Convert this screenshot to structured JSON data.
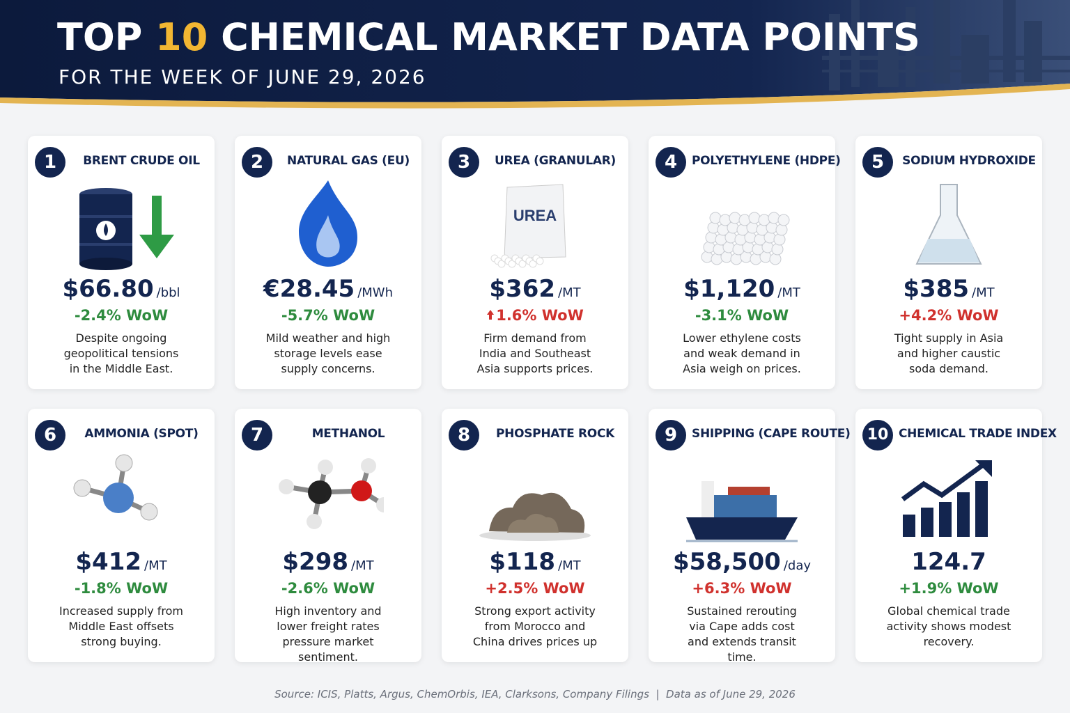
{
  "header": {
    "title_parts": [
      "TOP",
      "10",
      "CHEMICAL MARKET DATA POINTS"
    ],
    "subtitle": "FOR THE WEEK OF JUNE 29, 2026"
  },
  "cards": [
    {
      "number": "1",
      "name": "BRENT CRUDE OIL",
      "price": "$66.80",
      "unit": "/bbl",
      "change": "-2.4% WoW",
      "color": "#2e8b3e",
      "description": "Despite ongoing geopolitical tensions in the Middle East."
    },
    {
      "number": "2",
      "name": "NATURAL GAS (EU)",
      "price": "€28.45",
      "unit": "/MWh",
      "change": "-5.7% WoW",
      "color": "#2e8b3e",
      "description": "Mild weather and high storage levels ease supply concerns."
    },
    {
      "number": "3",
      "name": "UREA (GRANULAR)",
      "price": "$362",
      "unit": "/MT",
      "change": "1.6% WoW",
      "arrow": "up",
      "color": "#d0312d",
      "icon_label": "UREA",
      "description": "Firm demand from India and Southeast Asia supports prices."
    },
    {
      "number": "4",
      "name": "POLYETHYLENE (HDPE)",
      "price": "$1,120",
      "unit": "/MT",
      "change": "-3.1% WoW",
      "color": "#2e8b3e",
      "description": "Lower ethylene costs and weak demand in Asia weigh on prices."
    },
    {
      "number": "5",
      "name": "SODIUM HYDROXIDE",
      "price": "$385",
      "unit": "/MT",
      "change": "+4.2% WoW",
      "color": "#d0312d",
      "description": "Tight supply in Asia and higher caustic soda demand."
    },
    {
      "number": "6",
      "name": "AMMONIA (SPOT)",
      "price": "$412",
      "unit": "/MT",
      "change": "-1.8% WoW",
      "color": "#2e8b3e",
      "description": "Increased supply from Middle East offsets strong buying."
    },
    {
      "number": "7",
      "name": "METHANOL",
      "price": "$298",
      "unit": "/MT",
      "change": "-2.6% WoW",
      "color": "#2e8b3e",
      "description": "High inventory and lower freight rates pressure market sentiment."
    },
    {
      "number": "8",
      "name": "PHOSPHATE ROCK",
      "price": "$118",
      "unit": "/MT",
      "change": "+2.5% WoW",
      "color": "#d0312d",
      "description": "Strong export activity from Morocco and China drives prices up"
    },
    {
      "number": "9",
      "name": "SHIPPING (CAPE ROUTE)",
      "price": "$58,500",
      "unit": "/day",
      "change": "+6.3% WoW",
      "color": "#d0312d",
      "description": "Sustained rerouting via Cape adds cost and extends transit time."
    },
    {
      "number": "10",
      "name": "CHEMICAL TRADE INDEX",
      "price": "124.7",
      "change": "+1.9% WoW",
      "color": "#2e8b3e",
      "description": "Global chemical trade activity shows modest recovery."
    }
  ],
  "footer": {
    "source": "Source: ICIS, Platts, Argus, ChemOrbis, IEA, Clarksons, Company Filings  |  Data as of June 29, 2026"
  }
}
